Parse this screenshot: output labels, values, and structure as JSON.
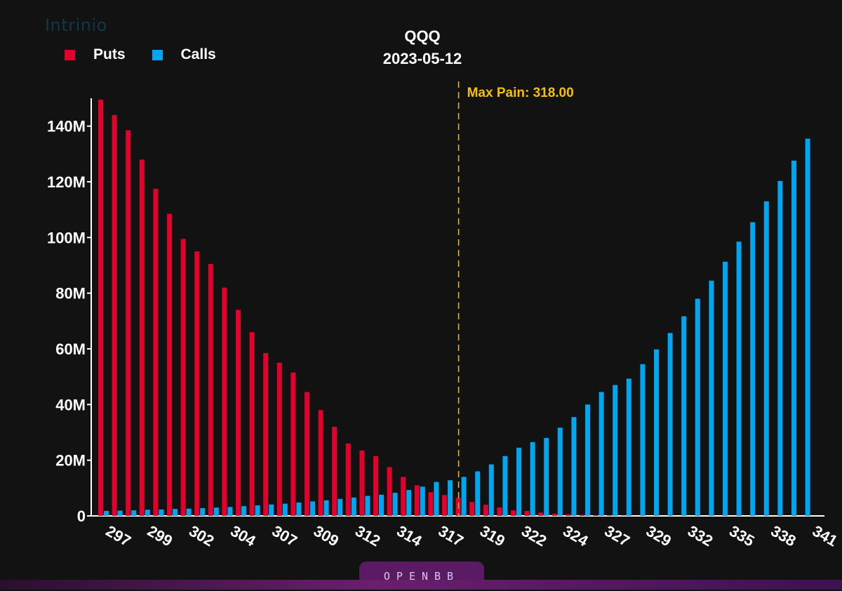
{
  "watermark": "Intrinio",
  "footer_brand": "OPENBB",
  "chart_data": {
    "type": "bar",
    "title": "QQQ",
    "subtitle": "2023-05-12",
    "xlabel": "",
    "ylabel": "",
    "ylim": [
      0,
      150
    ],
    "y_ticks": [
      0,
      20,
      40,
      60,
      80,
      100,
      120,
      140
    ],
    "y_tick_labels": [
      "0",
      "20M",
      "40M",
      "60M",
      "80M",
      "100M",
      "120M",
      "140M"
    ],
    "x_tick_labels": [
      "297",
      "299",
      "302",
      "304",
      "307",
      "309",
      "312",
      "314",
      "317",
      "319",
      "322",
      "324",
      "327",
      "329",
      "332",
      "335",
      "338",
      "341"
    ],
    "legend": {
      "position": "top-left",
      "entries": [
        "Puts",
        "Calls"
      ]
    },
    "annotation": {
      "text": "Max Pain: 318.00",
      "category_index": 26,
      "color": "#f5c000"
    },
    "series": [
      {
        "name": "Puts",
        "color": "#e3002d",
        "values": [
          149.5,
          144,
          138.5,
          128,
          117.5,
          108.5,
          99.5,
          95,
          90.5,
          82,
          74,
          66,
          58.5,
          55,
          51.5,
          44.5,
          38,
          32,
          26,
          23.5,
          21.5,
          17.5,
          14,
          11,
          8.5,
          7.5,
          6.5,
          5,
          4,
          3,
          2,
          1.8,
          1.2,
          0.8,
          0.6,
          0.4,
          0.3,
          0.2,
          0.1,
          0,
          0,
          0,
          0,
          0,
          0,
          0,
          0,
          0,
          0,
          0,
          0,
          0
        ]
      },
      {
        "name": "Calls",
        "color": "#00a6f0",
        "values": [
          1.8,
          1.9,
          2,
          2.2,
          2.3,
          2.5,
          2.6,
          2.8,
          3,
          3.2,
          3.5,
          3.8,
          4.1,
          4.4,
          4.8,
          5.2,
          5.6,
          6.1,
          6.6,
          7.2,
          7.6,
          8.3,
          9.3,
          10.5,
          12.2,
          12.8,
          14,
          16,
          18.5,
          21.5,
          24.5,
          26.5,
          28,
          31.7,
          35.5,
          40,
          44.5,
          47,
          49.3,
          54.5,
          59.8,
          65.7,
          71.7,
          78,
          84.5,
          91.3,
          98.5,
          105.5,
          113,
          120.3,
          127.6,
          135.5
        ]
      }
    ]
  }
}
